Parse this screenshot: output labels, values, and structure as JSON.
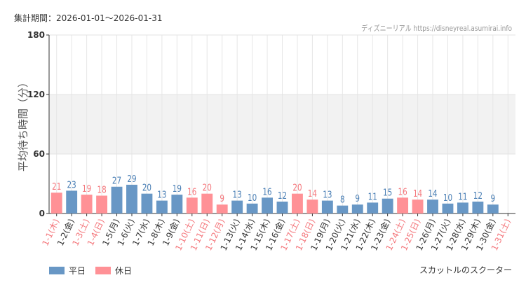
{
  "header": {
    "period": "集計期間：2026-01-01～2026-01-31",
    "credit": "ディズニーリアル https://disneyreal.asumirai.info"
  },
  "footer": {
    "attraction": "スカットルのスクーター"
  },
  "colors": {
    "weekday": "#6897c5",
    "holiday": "#ff9196",
    "holiday_text": "#f4777c",
    "weekday_text": "#4a7fb5",
    "band": "#f2f2f2"
  },
  "chart_data": {
    "type": "bar",
    "ylabel": "平均待ち時間（分）",
    "ylim": [
      0,
      180
    ],
    "yticks": [
      0,
      60,
      120,
      180
    ],
    "grid": true,
    "legend_position": "bottom-left",
    "legend": [
      {
        "name": "平日",
        "kind": "weekday"
      },
      {
        "name": "休日",
        "kind": "holiday"
      }
    ],
    "categories": [
      "1-1(木)",
      "1-2(金)",
      "1-3(土)",
      "1-4(日)",
      "1-5(月)",
      "1-6(火)",
      "1-7(水)",
      "1-8(木)",
      "1-9(金)",
      "1-10(土)",
      "1-11(日)",
      "1-12(月)",
      "1-13(火)",
      "1-14(水)",
      "1-15(木)",
      "1-16(金)",
      "1-17(土)",
      "1-18(日)",
      "1-19(月)",
      "1-20(火)",
      "1-21(水)",
      "1-22(木)",
      "1-23(金)",
      "1-24(土)",
      "1-25(日)",
      "1-26(月)",
      "1-27(火)",
      "1-28(水)",
      "1-29(木)",
      "1-30(金)",
      "1-31(土)"
    ],
    "holiday": [
      true,
      false,
      true,
      true,
      false,
      false,
      false,
      false,
      false,
      true,
      true,
      true,
      false,
      false,
      false,
      false,
      true,
      true,
      false,
      false,
      false,
      false,
      false,
      true,
      true,
      false,
      false,
      false,
      false,
      false,
      true
    ],
    "values": [
      21,
      23,
      19,
      18,
      27,
      29,
      20,
      13,
      19,
      16,
      20,
      9,
      13,
      10,
      16,
      12,
      20,
      14,
      13,
      8,
      9,
      11,
      15,
      16,
      14,
      14,
      10,
      11,
      12,
      9,
      null
    ]
  }
}
